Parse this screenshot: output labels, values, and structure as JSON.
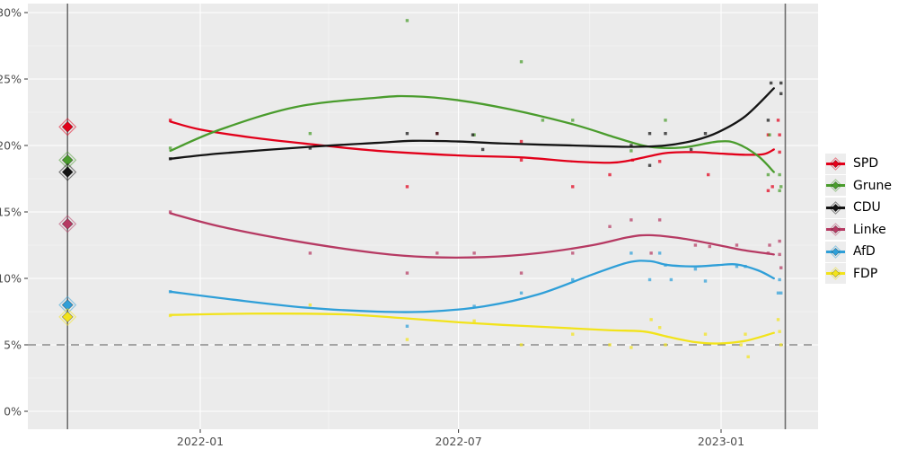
{
  "figure": {
    "bg": "#ffffff",
    "panel_bg": "#ebebeb",
    "axis_text_color": "#4d4d4d",
    "tick_color": "#333333",
    "grid_color": "#ffffff",
    "refline_color": "#7a7a7a",
    "vline_color": "#6e6e6e"
  },
  "y_axis": {
    "ticks": [
      {
        "label": "0%",
        "value": 0
      },
      {
        "label": "5%",
        "value": 5
      },
      {
        "label": "10%",
        "value": 10
      },
      {
        "label": "15%",
        "value": 15
      },
      {
        "label": "20%",
        "value": 20
      },
      {
        "label": "25%",
        "value": 25
      },
      {
        "label": "30%",
        "value": 30
      }
    ],
    "minor_values": [
      2.5,
      7.5,
      12.5,
      17.5,
      22.5,
      27.5
    ]
  },
  "x_axis": {
    "ticks": [
      {
        "label": "2022-01",
        "day": 0
      },
      {
        "label": "2022-07",
        "day": 181
      },
      {
        "label": "2023-01",
        "day": 365
      }
    ],
    "minor_days": [
      -92,
      90,
      273
    ]
  },
  "reference": {
    "threshold_pct": 5,
    "election_line_days": [
      -93,
      410
    ]
  },
  "legend": {
    "items": [
      {
        "label": "SPD",
        "color": "#e2001a"
      },
      {
        "label": "Grune",
        "color": "#4a9c2d"
      },
      {
        "label": "CDU",
        "color": "#141414"
      },
      {
        "label": "Linke",
        "color": "#b63a63"
      },
      {
        "label": "AfD",
        "color": "#2f9fd8"
      },
      {
        "label": "FDP",
        "color": "#f2e31b"
      }
    ]
  },
  "chart_data": {
    "type": "scatter",
    "subtype": "polls-with-smoothed-trend",
    "x_unit": "days since 2022-01-01",
    "xlabel_ticks": [
      "2022-01",
      "2022-07",
      "2023-01"
    ],
    "ylabel_ticks": [
      "0%",
      "5%",
      "10%",
      "15%",
      "20%",
      "25%",
      "30%"
    ],
    "ylim": [
      -1.4,
      30.7
    ],
    "xlim_days": [
      -121,
      433
    ],
    "grid": true,
    "legend_position": "right",
    "threshold_line_pct": 5,
    "vertical_lines_days": [
      -93,
      410
    ],
    "series": [
      {
        "name": "SPD",
        "color": "#e2001a",
        "election_2021": 21.4,
        "curve": [
          [
            -21,
            21.8
          ],
          [
            0,
            21.2
          ],
          [
            36,
            20.6
          ],
          [
            77,
            20.1
          ],
          [
            124,
            19.6
          ],
          [
            181,
            19.25
          ],
          [
            225,
            19.1
          ],
          [
            261,
            18.8
          ],
          [
            287,
            18.7
          ],
          [
            300,
            18.85
          ],
          [
            315,
            19.2
          ],
          [
            328,
            19.45
          ],
          [
            347,
            19.5
          ],
          [
            363,
            19.4
          ],
          [
            382,
            19.3
          ],
          [
            395,
            19.35
          ],
          [
            402,
            19.7
          ]
        ],
        "points": [
          [
            -21,
            21.9
          ],
          [
            145,
            16.9
          ],
          [
            166,
            20.9
          ],
          [
            225,
            20.3
          ],
          [
            225,
            18.9
          ],
          [
            261,
            16.9
          ],
          [
            287,
            17.8
          ],
          [
            303,
            18.9
          ],
          [
            322,
            18.8
          ],
          [
            356,
            17.8
          ],
          [
            398,
            20.8
          ],
          [
            398,
            16.6
          ],
          [
            401,
            16.9
          ],
          [
            405,
            21.9
          ],
          [
            406,
            20.8
          ],
          [
            406,
            19.5
          ]
        ]
      },
      {
        "name": "Grune",
        "color": "#4a9c2d",
        "election_2021": 18.9,
        "curve": [
          [
            -21,
            19.6
          ],
          [
            14,
            21.2
          ],
          [
            67,
            22.9
          ],
          [
            124,
            23.6
          ],
          [
            149,
            23.7
          ],
          [
            181,
            23.4
          ],
          [
            218,
            22.7
          ],
          [
            261,
            21.6
          ],
          [
            294,
            20.5
          ],
          [
            315,
            19.9
          ],
          [
            338,
            19.85
          ],
          [
            363,
            20.3
          ],
          [
            376,
            20.15
          ],
          [
            391,
            19.2
          ],
          [
            402,
            18.0
          ]
        ],
        "points": [
          [
            -21,
            19.8
          ],
          [
            77,
            20.9
          ],
          [
            145,
            29.4
          ],
          [
            192,
            20.8
          ],
          [
            225,
            26.3
          ],
          [
            240,
            21.9
          ],
          [
            261,
            21.9
          ],
          [
            302,
            19.6
          ],
          [
            326,
            21.9
          ],
          [
            398,
            17.8
          ],
          [
            399,
            20.8
          ],
          [
            406,
            17.8
          ],
          [
            406,
            16.6
          ],
          [
            407,
            16.9
          ]
        ]
      },
      {
        "name": "CDU",
        "color": "#141414",
        "election_2021": 18.0,
        "curve": [
          [
            -21,
            19.0
          ],
          [
            14,
            19.4
          ],
          [
            77,
            19.9
          ],
          [
            124,
            20.2
          ],
          [
            149,
            20.35
          ],
          [
            181,
            20.3
          ],
          [
            212,
            20.15
          ],
          [
            261,
            20.0
          ],
          [
            300,
            19.9
          ],
          [
            326,
            20.0
          ],
          [
            347,
            20.4
          ],
          [
            363,
            21.0
          ],
          [
            382,
            22.2
          ],
          [
            402,
            24.3
          ]
        ],
        "points": [
          [
            -21,
            19.0
          ],
          [
            77,
            19.8
          ],
          [
            145,
            20.9
          ],
          [
            166,
            20.9
          ],
          [
            191,
            20.8
          ],
          [
            198,
            19.7
          ],
          [
            302,
            20.0
          ],
          [
            315,
            20.9
          ],
          [
            315,
            18.5
          ],
          [
            326,
            20.9
          ],
          [
            344,
            19.7
          ],
          [
            354,
            20.9
          ],
          [
            398,
            21.9
          ],
          [
            400,
            24.7
          ],
          [
            407,
            24.7
          ],
          [
            407,
            23.9
          ]
        ]
      },
      {
        "name": "Linke",
        "color": "#b63a63",
        "election_2021": 14.1,
        "curve": [
          [
            -21,
            14.9
          ],
          [
            14,
            13.9
          ],
          [
            67,
            12.8
          ],
          [
            124,
            11.9
          ],
          [
            160,
            11.6
          ],
          [
            199,
            11.6
          ],
          [
            237,
            11.9
          ],
          [
            275,
            12.5
          ],
          [
            300,
            13.1
          ],
          [
            315,
            13.25
          ],
          [
            338,
            13.0
          ],
          [
            363,
            12.5
          ],
          [
            382,
            12.1
          ],
          [
            402,
            11.8
          ]
        ],
        "points": [
          [
            -21,
            15.0
          ],
          [
            77,
            11.9
          ],
          [
            145,
            10.4
          ],
          [
            166,
            11.9
          ],
          [
            192,
            11.9
          ],
          [
            225,
            10.4
          ],
          [
            261,
            11.9
          ],
          [
            287,
            13.9
          ],
          [
            302,
            14.4
          ],
          [
            316,
            11.9
          ],
          [
            322,
            14.4
          ],
          [
            347,
            12.5
          ],
          [
            357,
            12.4
          ],
          [
            376,
            12.5
          ],
          [
            398,
            11.9
          ],
          [
            399,
            12.5
          ],
          [
            406,
            12.8
          ],
          [
            406,
            11.8
          ],
          [
            407,
            10.8
          ]
        ]
      },
      {
        "name": "AfD",
        "color": "#2f9fd8",
        "election_2021": 8.0,
        "curve": [
          [
            -21,
            9.0
          ],
          [
            23,
            8.4
          ],
          [
            74,
            7.8
          ],
          [
            124,
            7.5
          ],
          [
            160,
            7.5
          ],
          [
            199,
            7.9
          ],
          [
            237,
            8.8
          ],
          [
            275,
            10.3
          ],
          [
            300,
            11.2
          ],
          [
            315,
            11.3
          ],
          [
            328,
            11.0
          ],
          [
            347,
            10.9
          ],
          [
            363,
            11.0
          ],
          [
            376,
            11.05
          ],
          [
            391,
            10.6
          ],
          [
            402,
            10.0
          ]
        ],
        "points": [
          [
            -21,
            9.0
          ],
          [
            145,
            6.4
          ],
          [
            192,
            7.9
          ],
          [
            225,
            8.9
          ],
          [
            261,
            9.9
          ],
          [
            302,
            11.9
          ],
          [
            315,
            9.9
          ],
          [
            322,
            11.9
          ],
          [
            326,
            11.0
          ],
          [
            330,
            9.9
          ],
          [
            347,
            10.7
          ],
          [
            354,
            9.8
          ],
          [
            376,
            10.9
          ],
          [
            382,
            10.9
          ],
          [
            405,
            8.9
          ],
          [
            406,
            9.9
          ],
          [
            407,
            8.9
          ]
        ]
      },
      {
        "name": "FDP",
        "color": "#f2e31b",
        "election_2021": 7.1,
        "curve": [
          [
            -21,
            7.25
          ],
          [
            36,
            7.35
          ],
          [
            99,
            7.3
          ],
          [
            143,
            7.0
          ],
          [
            181,
            6.7
          ],
          [
            212,
            6.5
          ],
          [
            250,
            6.3
          ],
          [
            287,
            6.1
          ],
          [
            311,
            6.0
          ],
          [
            328,
            5.6
          ],
          [
            347,
            5.2
          ],
          [
            363,
            5.1
          ],
          [
            382,
            5.3
          ],
          [
            402,
            5.9
          ]
        ],
        "points": [
          [
            -21,
            7.2
          ],
          [
            77,
            8.0
          ],
          [
            145,
            5.4
          ],
          [
            192,
            6.8
          ],
          [
            225,
            5.0
          ],
          [
            261,
            5.8
          ],
          [
            287,
            5.0
          ],
          [
            302,
            4.8
          ],
          [
            316,
            6.9
          ],
          [
            322,
            6.3
          ],
          [
            326,
            5.0
          ],
          [
            354,
            5.8
          ],
          [
            379,
            5.0
          ],
          [
            382,
            5.8
          ],
          [
            384,
            4.1
          ],
          [
            405,
            6.9
          ],
          [
            406,
            6.0
          ],
          [
            407,
            5.0
          ]
        ]
      }
    ]
  }
}
